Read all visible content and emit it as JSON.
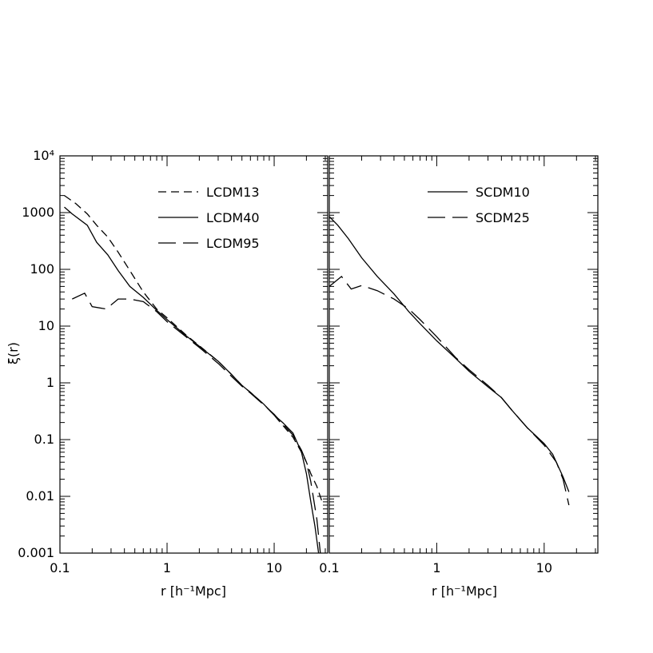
{
  "chart_data": [
    {
      "type": "line",
      "panel": "left",
      "xlabel": "r [h⁻¹Mpc]",
      "ylabel": "ξ(r)",
      "xscale": "log",
      "yscale": "log",
      "xlim": [
        0.1,
        31.6
      ],
      "ylim": [
        0.001,
        10000
      ],
      "x_tick_labels": [
        "0.1",
        "1",
        "10"
      ],
      "y_tick_labels": [
        "0.001",
        "0.01",
        "0.1",
        "1",
        "10",
        "100",
        "1000",
        "10⁴"
      ],
      "grid": false,
      "legend_position": "top-right",
      "series": [
        {
          "name": "LCDM13",
          "dash": "short-dash",
          "x": [
            0.11,
            0.14,
            0.18,
            0.22,
            0.28,
            0.35,
            0.45,
            0.6,
            0.8,
            1.0,
            1.5,
            2.0,
            3.0,
            4.0,
            5.0,
            6.0,
            8.0,
            10.0,
            12.0,
            15.0,
            18.0,
            20.0,
            22.0,
            25.0,
            28.0
          ],
          "y": [
            2000,
            1450,
            950,
            600,
            370,
            200,
            95,
            40,
            20,
            14,
            7.0,
            4.5,
            2.4,
            1.4,
            0.9,
            0.68,
            0.42,
            0.27,
            0.18,
            0.11,
            0.06,
            0.04,
            0.025,
            0.015,
            0.008
          ]
        },
        {
          "name": "LCDM40",
          "dash": "solid",
          "x": [
            0.11,
            0.13,
            0.18,
            0.22,
            0.28,
            0.35,
            0.45,
            0.6,
            0.8,
            1.0,
            1.5,
            2.0,
            3.0,
            4.0,
            5.0,
            6.0,
            8.0,
            10.0,
            12.0,
            15.0,
            18.0,
            20.0,
            22.0,
            24.0,
            26.0
          ],
          "y": [
            1250,
            950,
            600,
            300,
            180,
            95,
            50,
            32,
            19,
            13,
            6.8,
            4.4,
            2.4,
            1.4,
            0.9,
            0.68,
            0.42,
            0.27,
            0.2,
            0.13,
            0.06,
            0.025,
            0.008,
            0.003,
            0.001
          ]
        },
        {
          "name": "LCDM95",
          "dash": "long-dash",
          "x": [
            0.13,
            0.17,
            0.2,
            0.27,
            0.35,
            0.45,
            0.6,
            0.8,
            1.0,
            1.5,
            2.0,
            3.0,
            4.0,
            5.0,
            6.0,
            8.0,
            10.0,
            12.0,
            15.0,
            18.0,
            20.0,
            22.0,
            25.0,
            27.0
          ],
          "y": [
            30,
            38,
            22,
            20,
            30,
            30,
            27,
            18,
            12,
            6.5,
            4.2,
            2.2,
            1.3,
            0.87,
            0.66,
            0.41,
            0.28,
            0.19,
            0.12,
            0.065,
            0.04,
            0.018,
            0.004,
            0.001
          ]
        }
      ]
    },
    {
      "type": "line",
      "panel": "right",
      "xlabel": "r [h⁻¹Mpc]",
      "ylabel": "",
      "xscale": "log",
      "yscale": "log",
      "xlim": [
        0.1,
        31.6
      ],
      "ylim": [
        0.001,
        10000
      ],
      "x_tick_labels": [
        "0.1",
        "1",
        "10"
      ],
      "grid": false,
      "legend_position": "top-right",
      "series": [
        {
          "name": "SCDM10",
          "dash": "solid",
          "x": [
            0.1,
            0.12,
            0.15,
            0.2,
            0.28,
            0.4,
            0.55,
            0.7,
            1.0,
            1.5,
            2.0,
            3.0,
            4.0,
            5.0,
            7.0,
            10.0,
            12.0,
            15.0,
            17.0
          ],
          "y": [
            850,
            600,
            350,
            160,
            75,
            37,
            18,
            11,
            5.5,
            2.7,
            1.6,
            0.85,
            0.55,
            0.33,
            0.16,
            0.085,
            0.055,
            0.022,
            0.012
          ]
        },
        {
          "name": "SCDM25",
          "dash": "long-dash",
          "x": [
            0.1,
            0.13,
            0.16,
            0.2,
            0.28,
            0.4,
            0.55,
            0.7,
            1.0,
            1.5,
            2.0,
            3.0,
            4.0,
            5.0,
            7.0,
            10.0,
            13.0,
            15.0,
            17.0
          ],
          "y": [
            50,
            75,
            45,
            52,
            42,
            30,
            20,
            13,
            6.5,
            2.8,
            1.7,
            0.9,
            0.55,
            0.33,
            0.16,
            0.08,
            0.04,
            0.02,
            0.007
          ]
        }
      ]
    }
  ]
}
